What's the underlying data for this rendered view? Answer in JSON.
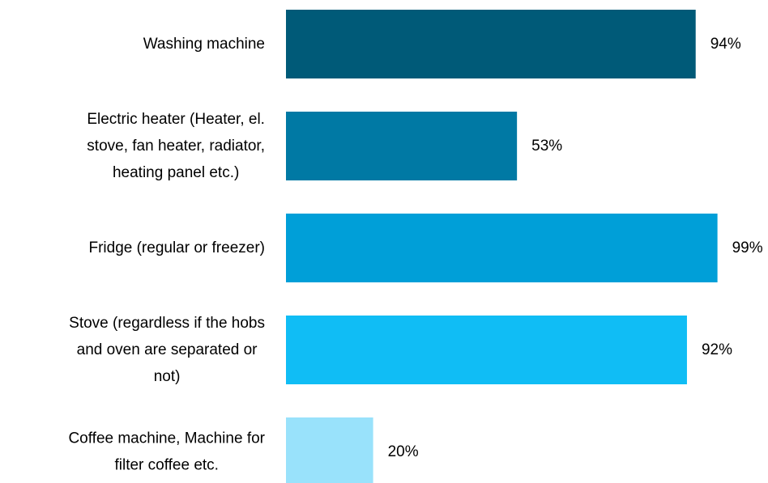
{
  "chart_data": {
    "type": "bar",
    "orientation": "horizontal",
    "title": "",
    "xlabel": "",
    "ylabel": "",
    "xlim": [
      0,
      100
    ],
    "grid": false,
    "legend": "none",
    "categories": [
      "Washing machine",
      "Electric heater (Heater, el. stove, fan heater, radiator, heating panel etc.)",
      "Fridge (regular or freezer)",
      "Stove (regardless if the hobs and oven are separated  or not)",
      "Coffee machine, Machine for filter coffee etc."
    ],
    "category_lines": [
      [
        "Washing machine"
      ],
      [
        "Electric heater (Heater, el.",
        "stove, fan heater, radiator,",
        "heating panel etc.)"
      ],
      [
        "Fridge (regular or freezer)"
      ],
      [
        "Stove (regardless if the hobs",
        "and oven are separated  or",
        "not)"
      ],
      [
        "Coffee machine, Machine for",
        "filter coffee etc."
      ]
    ],
    "values": [
      94,
      53,
      99,
      92,
      20
    ],
    "value_labels": [
      "94%",
      "53%",
      "99%",
      "92%",
      "20%"
    ],
    "colors": [
      "#005a78",
      "#0079a4",
      "#009fd8",
      "#10bdf5",
      "#99e2fb"
    ]
  }
}
